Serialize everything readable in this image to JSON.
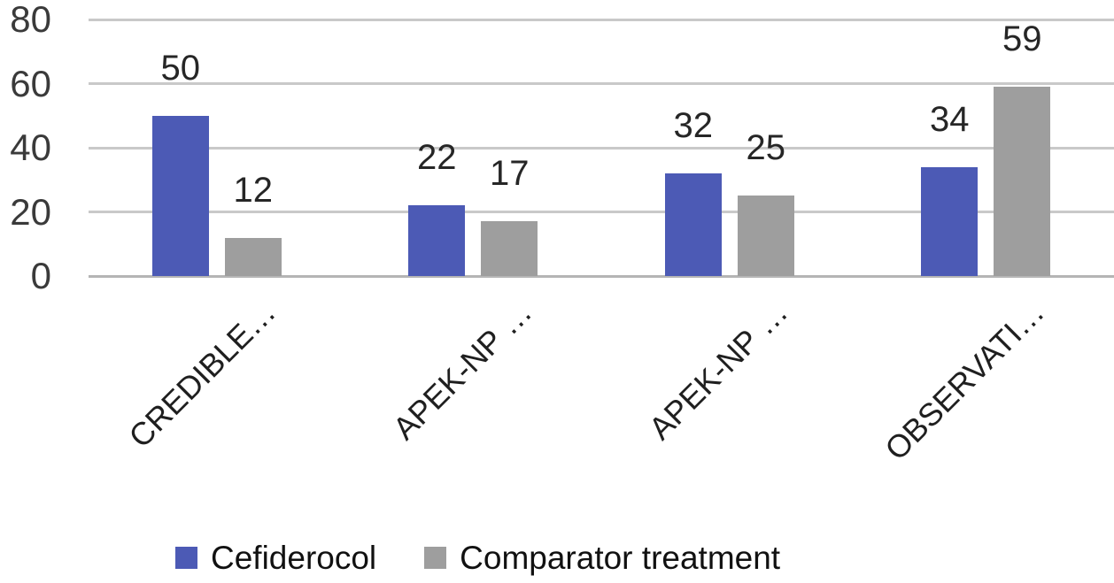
{
  "chart_data": {
    "type": "bar",
    "title": "",
    "xlabel": "",
    "ylabel": "",
    "categories": [
      "CREDIBLE…",
      "APEK-NP …",
      "APEK-NP …",
      "OBSERVATI…"
    ],
    "series": [
      {
        "name": "Cefiderocol",
        "color": "#4c5ab5",
        "values": [
          50,
          22,
          32,
          34
        ]
      },
      {
        "name": "Comparator treatment",
        "color": "#9e9e9e",
        "values": [
          12,
          17,
          25,
          59
        ]
      }
    ],
    "ylim": [
      0,
      80
    ],
    "yticks": [
      0,
      20,
      40,
      60,
      80
    ],
    "grid": true,
    "grid_color": "#c9c9c9",
    "axis_line_color": "#b5b5b5",
    "data_labels_shown": true,
    "category_label_rotation_deg": 45,
    "legend_position": "bottom"
  }
}
